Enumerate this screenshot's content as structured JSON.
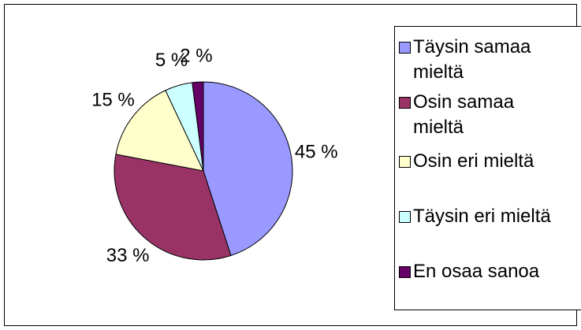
{
  "chart_data": {
    "type": "pie",
    "categories": [
      "Täysin samaa mieltä",
      "Osin samaa mieltä",
      "Osin eri mieltä",
      "Täysin eri mieltä",
      "En osaa sanoa"
    ],
    "values": [
      45,
      33,
      15,
      5,
      2
    ],
    "value_labels": [
      "45 %",
      "33 %",
      "15 %",
      "5 %",
      "2 %"
    ],
    "colors": [
      "#9999ff",
      "#993366",
      "#ffffcc",
      "#ccffff",
      "#660066"
    ],
    "legend": "right"
  }
}
